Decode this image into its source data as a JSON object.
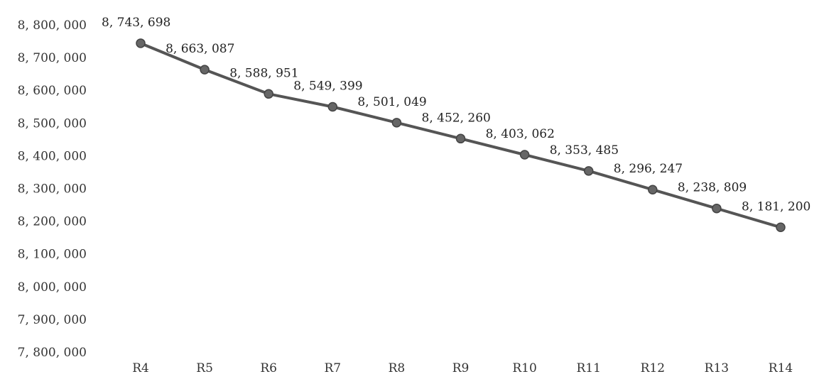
{
  "chart_data": {
    "type": "line",
    "categories": [
      "R4",
      "R5",
      "R6",
      "R7",
      "R8",
      "R9",
      "R10",
      "R11",
      "R12",
      "R13",
      "R14"
    ],
    "values": [
      8743698,
      8663087,
      8588951,
      8549399,
      8501049,
      8452260,
      8403062,
      8353485,
      8296247,
      8238809,
      8181200
    ],
    "data_labels": [
      "8, 743, 698",
      "8, 663, 087",
      "8, 588, 951",
      "8, 549, 399",
      "8, 501, 049",
      "8, 452, 260",
      "8, 403, 062",
      "8, 353, 485",
      "8, 296, 247",
      "8, 238, 809",
      "8, 181, 200"
    ],
    "y_ticks": [
      8800000,
      8700000,
      8600000,
      8500000,
      8400000,
      8300000,
      8200000,
      8100000,
      8000000,
      7900000,
      7800000
    ],
    "y_tick_labels": [
      "8, 800, 000",
      "8, 700, 000",
      "8, 600, 000",
      "8, 500, 000",
      "8, 400, 000",
      "8, 300, 000",
      "8, 200, 000",
      "8, 100, 000",
      "8, 000, 000",
      "7, 900, 000",
      "7, 800, 000"
    ],
    "ylim": [
      7800000,
      8800000
    ],
    "title": "",
    "xlabel": "",
    "ylabel": "",
    "grid": false,
    "legend": "none",
    "line_color": "#555555",
    "marker_color": "#666666"
  }
}
